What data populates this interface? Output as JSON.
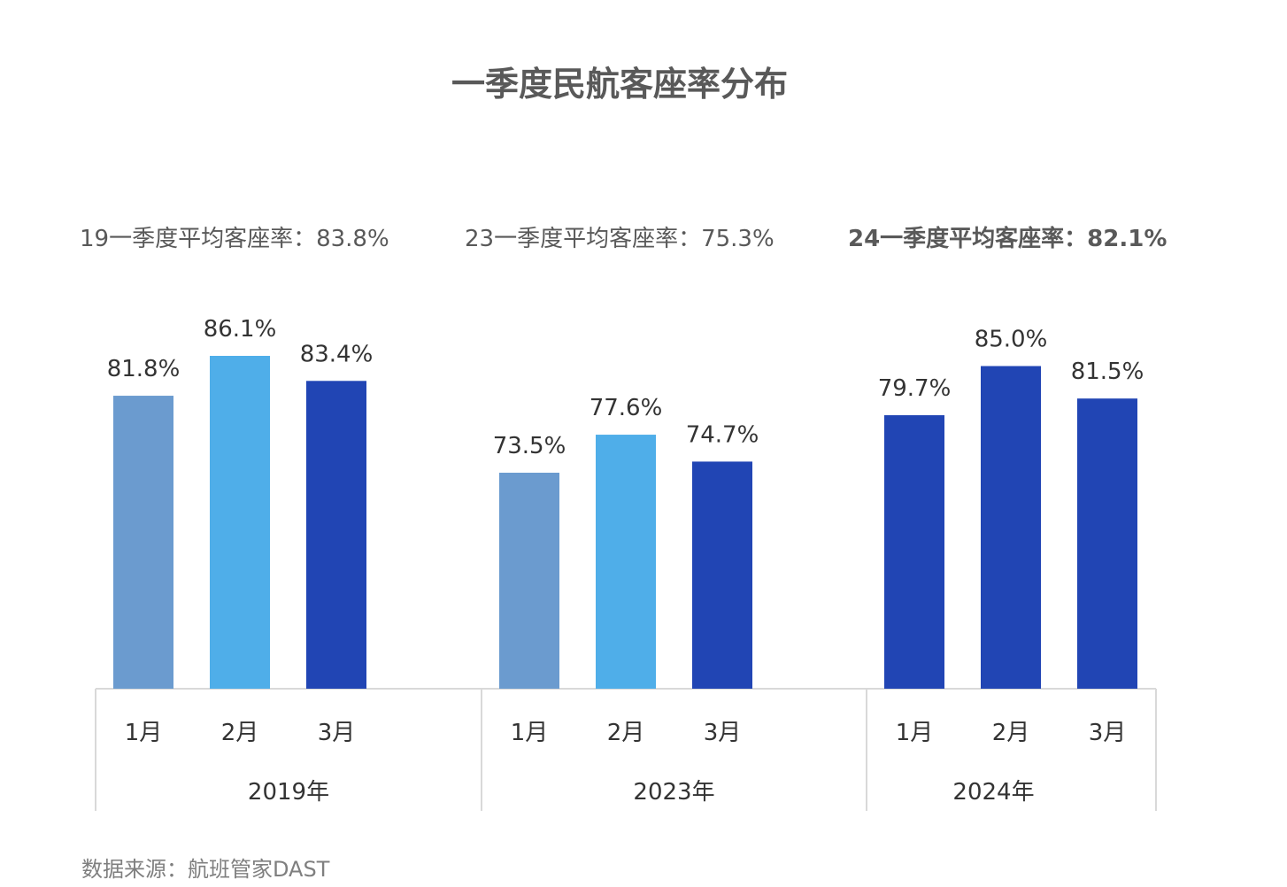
{
  "chart_data": {
    "type": "bar",
    "title": "一季度民航客座率分布",
    "groups": [
      {
        "label": "2019年",
        "average_text": "19一季度平均客座率：83.8%",
        "average_bold": false,
        "categories": [
          "1月",
          "2月",
          "3月"
        ],
        "values": [
          81.8,
          86.1,
          83.4
        ],
        "value_labels": [
          "81.8%",
          "86.1%",
          "83.4%"
        ],
        "colors": [
          "#6b9bcf",
          "#4faee9",
          "#2145b4"
        ]
      },
      {
        "label": "2023年",
        "average_text": "23一季度平均客座率：75.3%",
        "average_bold": false,
        "categories": [
          "1月",
          "2月",
          "3月"
        ],
        "values": [
          73.5,
          77.6,
          74.7
        ],
        "value_labels": [
          "73.5%",
          "77.6%",
          "74.7%"
        ],
        "colors": [
          "#6b9bcf",
          "#4faee9",
          "#2145b4"
        ]
      },
      {
        "label": "2024年",
        "average_text": "24一季度平均客座率：82.1%",
        "average_bold": true,
        "categories": [
          "1月",
          "2月",
          "3月"
        ],
        "values": [
          79.7,
          85.0,
          81.5
        ],
        "value_labels": [
          "79.7%",
          "85.0%",
          "81.5%"
        ],
        "colors": [
          "#2145b4",
          "#2145b4",
          "#2145b4"
        ]
      }
    ],
    "unit": "%",
    "ylim": [
      45,
      90
    ],
    "grid": false,
    "legend": "none",
    "source": "数据来源：航班管家DAST"
  }
}
